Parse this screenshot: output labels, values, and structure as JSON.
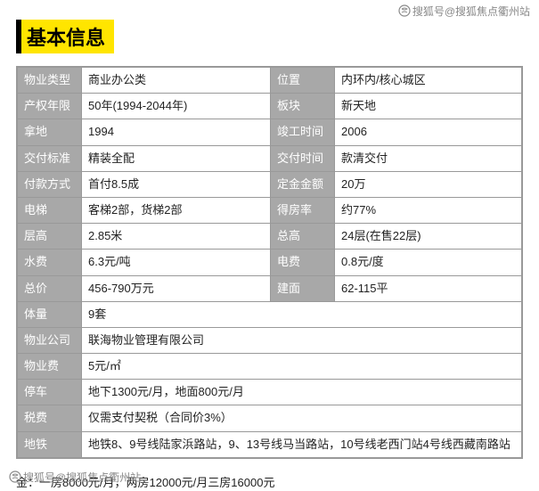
{
  "watermark_top": "搜狐号@搜狐焦点衢州站",
  "watermark_bottom": "搜狐号@搜狐焦点衢州站",
  "heading": "基本信息",
  "rows_two_col": [
    {
      "l1": "物业类型",
      "v1": "商业办公类",
      "l2": "位置",
      "v2": "内环内/核心城区"
    },
    {
      "l1": "产权年限",
      "v1": "50年(1994-2044年)",
      "l2": "板块",
      "v2": "新天地"
    },
    {
      "l1": "拿地",
      "v1": "1994",
      "l2": "竣工时间",
      "v2": "2006"
    },
    {
      "l1": "交付标准",
      "v1": "精装全配",
      "l2": "交付时间",
      "v2": "款清交付"
    },
    {
      "l1": "付款方式",
      "v1": "首付8.5成",
      "l2": "定金金额",
      "v2": "20万"
    },
    {
      "l1": "电梯",
      "v1": "客梯2部，货梯2部",
      "l2": "得房率",
      "v2": "约77%"
    },
    {
      "l1": "层高",
      "v1": "2.85米",
      "l2": "总高",
      "v2": "24层(在售22层)"
    },
    {
      "l1": "水费",
      "v1": "6.3元/吨",
      "l2": "电费",
      "v2": "0.8元/度"
    },
    {
      "l1": "总价",
      "v1": "456-790万元",
      "l2": "建面",
      "v2": "62-115平"
    }
  ],
  "rows_one_col": [
    {
      "l": "体量",
      "v": "9套"
    },
    {
      "l": "物业公司",
      "v": "联海物业管理有限公司"
    },
    {
      "l": "物业费",
      "v": "5元/㎡"
    },
    {
      "l": "停车",
      "v": "地下1300元/月，地面800元/月"
    },
    {
      "l": "税费",
      "v": "仅需支付契税（合同价3%）"
    },
    {
      "l": "地铁",
      "v": "地铁8、9号线陆家浜路站，9、13号线马当路站，10号线老西门站4号线西藏南路站"
    }
  ],
  "footer_text": "金：一房8000元/月，两房12000元/月三房16000元",
  "colors": {
    "heading_bg": "#ffe500",
    "label_bg": "#a8a8a8",
    "label_text": "#ffffff",
    "border": "#999999",
    "value_text": "#222222"
  }
}
